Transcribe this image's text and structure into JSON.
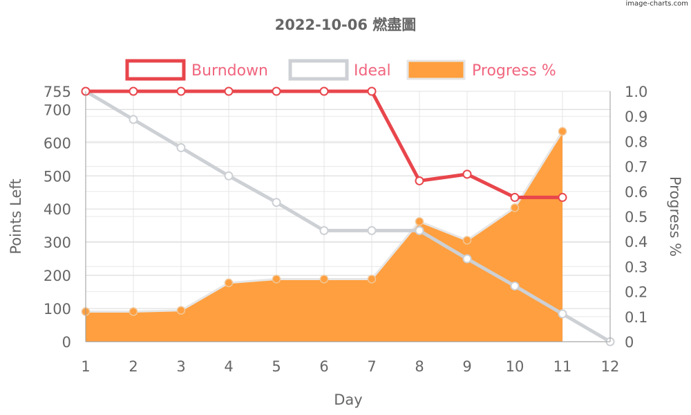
{
  "watermark": "image-charts.com",
  "chart_data": {
    "type": "line",
    "title": "2022-10-06 燃盡圖",
    "xlabel": "Day",
    "ylabel": "Points Left",
    "y2label": "Progress %",
    "categories": [
      "1",
      "2",
      "3",
      "4",
      "5",
      "6",
      "7",
      "8",
      "9",
      "10",
      "11",
      "12"
    ],
    "ylim": [
      0,
      755
    ],
    "yticks": [
      "0",
      "100",
      "200",
      "300",
      "400",
      "500",
      "600",
      "700",
      "755"
    ],
    "y2lim": [
      0,
      1.0
    ],
    "y2ticks": [
      "0",
      "0.1",
      "0.2",
      "0.3",
      "0.4",
      "0.5",
      "0.6",
      "0.7",
      "0.8",
      "0.9",
      "1.0"
    ],
    "grid": true,
    "legend_position": "top",
    "series": [
      {
        "name": "Burndown",
        "axis": "left",
        "kind": "line",
        "color": "#e8464c",
        "values": [
          755,
          755,
          755,
          755,
          755,
          755,
          755,
          485,
          505,
          435,
          435,
          null
        ]
      },
      {
        "name": "Ideal",
        "axis": "left",
        "kind": "line",
        "color": "#cdd0d4",
        "values": [
          755,
          670,
          585,
          500,
          420,
          335,
          335,
          335,
          250,
          168,
          84,
          0
        ]
      },
      {
        "name": "Progress %",
        "axis": "right",
        "kind": "area",
        "color": "#ff9f3f",
        "values": [
          0.12,
          0.12,
          0.125,
          0.235,
          0.25,
          0.25,
          0.25,
          0.48,
          0.405,
          0.535,
          0.84,
          null
        ]
      }
    ]
  }
}
